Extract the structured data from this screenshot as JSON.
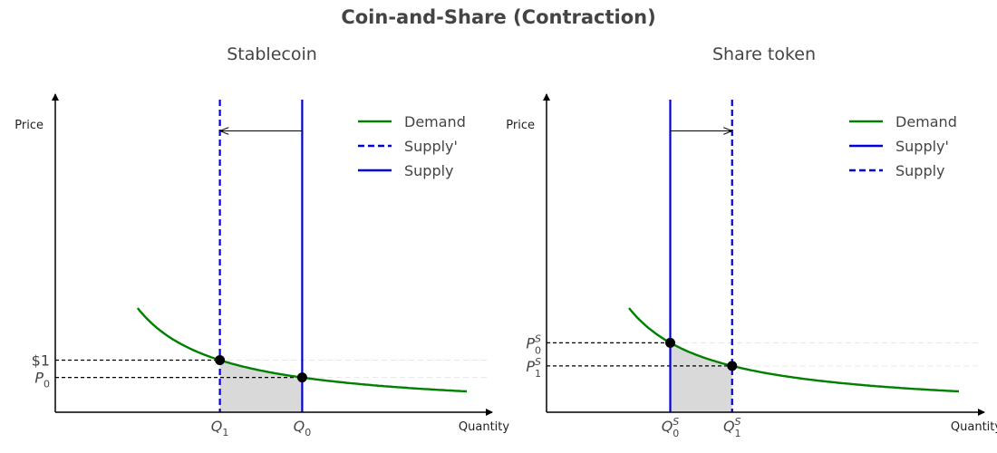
{
  "suptitle": "Coin-and-Share (Contraction)",
  "colors": {
    "demand": "#008000",
    "supply": "#0000dd",
    "shade": "#d9d9d9",
    "grid": "#e6e6e6",
    "text": "#444444"
  },
  "chart_data": [
    {
      "type": "line",
      "title": "Stablecoin",
      "xlabel": "Quantity",
      "ylabel": "Price",
      "xlim": [
        0,
        10
      ],
      "ylim": [
        0,
        6
      ],
      "demand_k": 4,
      "demand_x_range": [
        2,
        10
      ],
      "series": [
        {
          "name": "Demand",
          "kind": "curve",
          "style": "solid",
          "color": "#008000"
        },
        {
          "name": "Supply'",
          "kind": "vline",
          "x": 4,
          "style": "dashed",
          "color": "#0000dd"
        },
        {
          "name": "Supply",
          "kind": "vline",
          "x": 6,
          "style": "solid",
          "color": "#0000dd"
        }
      ],
      "equilibria": [
        {
          "x": 4,
          "y": 1.0
        },
        {
          "x": 6,
          "y": 0.667
        }
      ],
      "y_ticks": [
        {
          "value": 1.0,
          "label": "$1"
        },
        {
          "value": 0.667,
          "label": "P",
          "sub": "0",
          "sup": ""
        }
      ],
      "x_ticks": [
        {
          "value": 4,
          "label": "Q",
          "sub": "1",
          "sup": ""
        },
        {
          "value": 6,
          "label": "Q",
          "sub": "0",
          "sup": ""
        }
      ],
      "arrow": {
        "from": 6,
        "to": 4,
        "y": 5.4
      },
      "shade": {
        "from": 4,
        "to": 6
      }
    },
    {
      "type": "line",
      "title": "Share token",
      "xlabel": "Quantity",
      "ylabel": "Price",
      "xlim": [
        0,
        10
      ],
      "ylim": [
        0,
        6
      ],
      "demand_k": 4,
      "demand_x_range": [
        2,
        10
      ],
      "series": [
        {
          "name": "Demand",
          "kind": "curve",
          "style": "solid",
          "color": "#008000"
        },
        {
          "name": "Supply'",
          "kind": "vline",
          "x": 3,
          "style": "solid",
          "color": "#0000dd"
        },
        {
          "name": "Supply",
          "kind": "vline",
          "x": 4.5,
          "style": "dashed",
          "color": "#0000dd"
        }
      ],
      "equilibria": [
        {
          "x": 3,
          "y": 1.333
        },
        {
          "x": 4.5,
          "y": 0.889
        }
      ],
      "y_ticks": [
        {
          "value": 1.333,
          "label": "P",
          "sub": "0",
          "sup": "S"
        },
        {
          "value": 0.889,
          "label": "P",
          "sub": "1",
          "sup": "S"
        }
      ],
      "x_ticks": [
        {
          "value": 3,
          "label": "Q",
          "sub": "0",
          "sup": "S"
        },
        {
          "value": 4.5,
          "label": "Q",
          "sub": "1",
          "sup": "S"
        }
      ],
      "arrow": {
        "from": 3,
        "to": 4.5,
        "y": 5.4
      },
      "shade": {
        "from": 3,
        "to": 4.5
      }
    }
  ]
}
